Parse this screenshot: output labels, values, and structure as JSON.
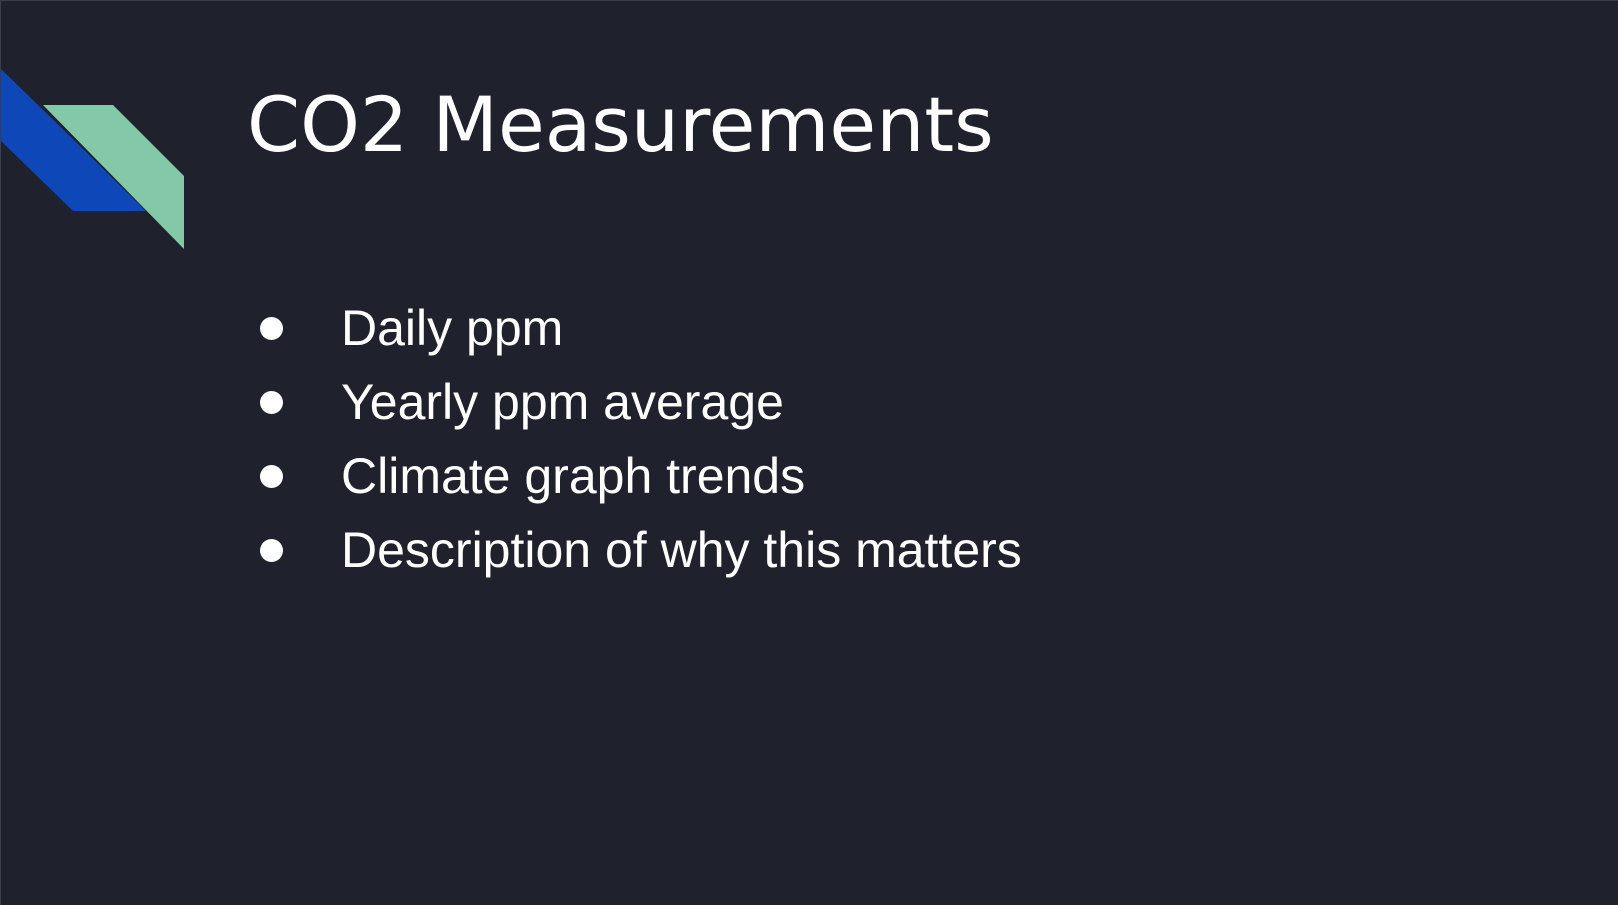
{
  "slide": {
    "title": "CO2 Measurements",
    "bullets": [
      "Daily ppm",
      "Yearly ppm average",
      "Climate graph trends",
      "Description of why this matters"
    ],
    "colors": {
      "background": "#1f222c",
      "accent_blue": "#0d47b8",
      "accent_green": "#84c9a7",
      "text": "#ffffff"
    }
  }
}
